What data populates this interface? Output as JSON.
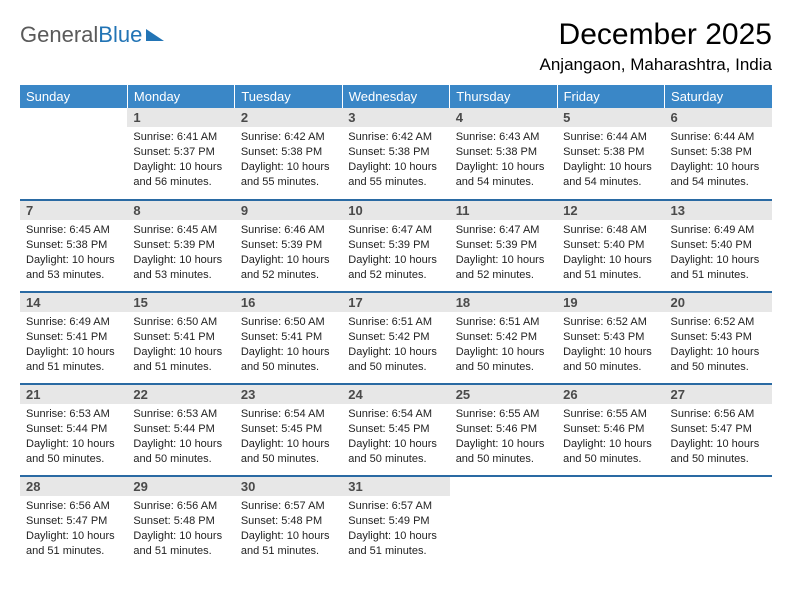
{
  "logo": {
    "part1": "General",
    "part2": "Blue"
  },
  "title": "December 2025",
  "location": "Anjangaon, Maharashtra, India",
  "weekdays": [
    "Sunday",
    "Monday",
    "Tuesday",
    "Wednesday",
    "Thursday",
    "Friday",
    "Saturday"
  ],
  "colors": {
    "header_bg": "#3a87c7",
    "header_text": "#ffffff",
    "daynum_bg": "#e7e7e7",
    "border": "#2a6aa3",
    "logo_gray": "#5a5a5a",
    "logo_blue": "#2274b5"
  },
  "layout": {
    "cols": 7,
    "rows": 5,
    "first_weekday_offset": 1
  },
  "days": [
    {
      "n": 1,
      "sunrise": "6:41 AM",
      "sunset": "5:37 PM",
      "daylight": "10 hours and 56 minutes."
    },
    {
      "n": 2,
      "sunrise": "6:42 AM",
      "sunset": "5:38 PM",
      "daylight": "10 hours and 55 minutes."
    },
    {
      "n": 3,
      "sunrise": "6:42 AM",
      "sunset": "5:38 PM",
      "daylight": "10 hours and 55 minutes."
    },
    {
      "n": 4,
      "sunrise": "6:43 AM",
      "sunset": "5:38 PM",
      "daylight": "10 hours and 54 minutes."
    },
    {
      "n": 5,
      "sunrise": "6:44 AM",
      "sunset": "5:38 PM",
      "daylight": "10 hours and 54 minutes."
    },
    {
      "n": 6,
      "sunrise": "6:44 AM",
      "sunset": "5:38 PM",
      "daylight": "10 hours and 54 minutes."
    },
    {
      "n": 7,
      "sunrise": "6:45 AM",
      "sunset": "5:38 PM",
      "daylight": "10 hours and 53 minutes."
    },
    {
      "n": 8,
      "sunrise": "6:45 AM",
      "sunset": "5:39 PM",
      "daylight": "10 hours and 53 minutes."
    },
    {
      "n": 9,
      "sunrise": "6:46 AM",
      "sunset": "5:39 PM",
      "daylight": "10 hours and 52 minutes."
    },
    {
      "n": 10,
      "sunrise": "6:47 AM",
      "sunset": "5:39 PM",
      "daylight": "10 hours and 52 minutes."
    },
    {
      "n": 11,
      "sunrise": "6:47 AM",
      "sunset": "5:39 PM",
      "daylight": "10 hours and 52 minutes."
    },
    {
      "n": 12,
      "sunrise": "6:48 AM",
      "sunset": "5:40 PM",
      "daylight": "10 hours and 51 minutes."
    },
    {
      "n": 13,
      "sunrise": "6:49 AM",
      "sunset": "5:40 PM",
      "daylight": "10 hours and 51 minutes."
    },
    {
      "n": 14,
      "sunrise": "6:49 AM",
      "sunset": "5:41 PM",
      "daylight": "10 hours and 51 minutes."
    },
    {
      "n": 15,
      "sunrise": "6:50 AM",
      "sunset": "5:41 PM",
      "daylight": "10 hours and 51 minutes."
    },
    {
      "n": 16,
      "sunrise": "6:50 AM",
      "sunset": "5:41 PM",
      "daylight": "10 hours and 50 minutes."
    },
    {
      "n": 17,
      "sunrise": "6:51 AM",
      "sunset": "5:42 PM",
      "daylight": "10 hours and 50 minutes."
    },
    {
      "n": 18,
      "sunrise": "6:51 AM",
      "sunset": "5:42 PM",
      "daylight": "10 hours and 50 minutes."
    },
    {
      "n": 19,
      "sunrise": "6:52 AM",
      "sunset": "5:43 PM",
      "daylight": "10 hours and 50 minutes."
    },
    {
      "n": 20,
      "sunrise": "6:52 AM",
      "sunset": "5:43 PM",
      "daylight": "10 hours and 50 minutes."
    },
    {
      "n": 21,
      "sunrise": "6:53 AM",
      "sunset": "5:44 PM",
      "daylight": "10 hours and 50 minutes."
    },
    {
      "n": 22,
      "sunrise": "6:53 AM",
      "sunset": "5:44 PM",
      "daylight": "10 hours and 50 minutes."
    },
    {
      "n": 23,
      "sunrise": "6:54 AM",
      "sunset": "5:45 PM",
      "daylight": "10 hours and 50 minutes."
    },
    {
      "n": 24,
      "sunrise": "6:54 AM",
      "sunset": "5:45 PM",
      "daylight": "10 hours and 50 minutes."
    },
    {
      "n": 25,
      "sunrise": "6:55 AM",
      "sunset": "5:46 PM",
      "daylight": "10 hours and 50 minutes."
    },
    {
      "n": 26,
      "sunrise": "6:55 AM",
      "sunset": "5:46 PM",
      "daylight": "10 hours and 50 minutes."
    },
    {
      "n": 27,
      "sunrise": "6:56 AM",
      "sunset": "5:47 PM",
      "daylight": "10 hours and 50 minutes."
    },
    {
      "n": 28,
      "sunrise": "6:56 AM",
      "sunset": "5:47 PM",
      "daylight": "10 hours and 51 minutes."
    },
    {
      "n": 29,
      "sunrise": "6:56 AM",
      "sunset": "5:48 PM",
      "daylight": "10 hours and 51 minutes."
    },
    {
      "n": 30,
      "sunrise": "6:57 AM",
      "sunset": "5:48 PM",
      "daylight": "10 hours and 51 minutes."
    },
    {
      "n": 31,
      "sunrise": "6:57 AM",
      "sunset": "5:49 PM",
      "daylight": "10 hours and 51 minutes."
    }
  ],
  "labels": {
    "sunrise": "Sunrise:",
    "sunset": "Sunset:",
    "daylight": "Daylight:"
  }
}
